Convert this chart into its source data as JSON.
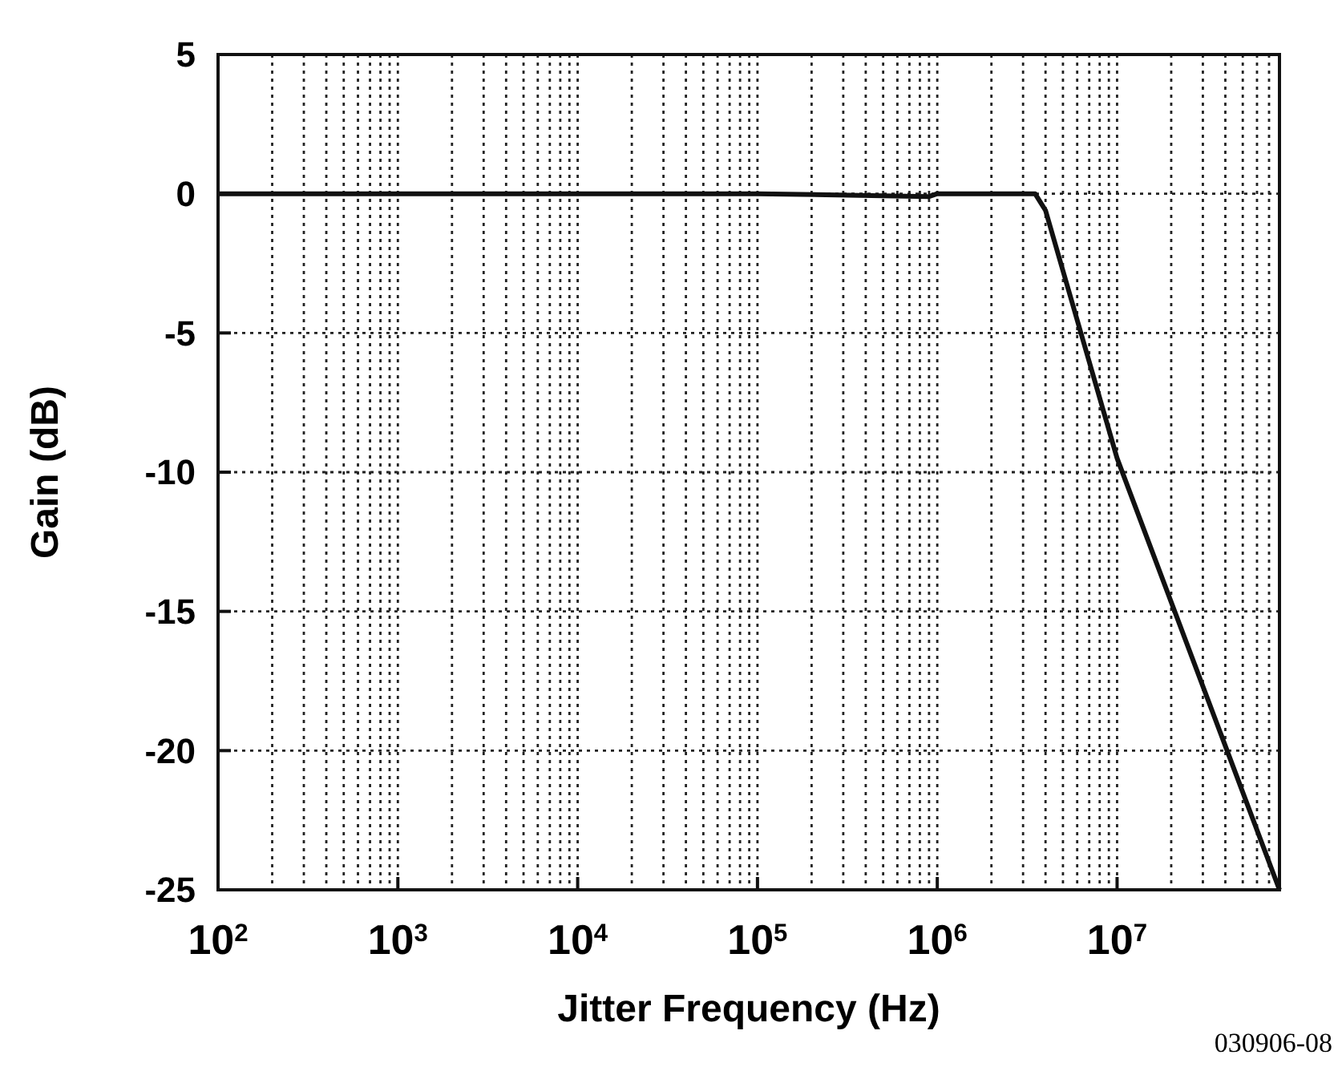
{
  "chart_data": {
    "type": "line",
    "xlabel": "Jitter Frequency (Hz)",
    "ylabel": "Gain (dB)",
    "annotations": [
      "030906-08"
    ],
    "x": [
      100,
      1000,
      10000,
      100000,
      900000,
      1000000,
      2000000,
      3500000,
      4000000,
      10000000,
      80000000
    ],
    "series": [
      {
        "color": "#111111",
        "values": [
          0,
          0,
          0,
          0,
          -0.1,
          0,
          0,
          0,
          -0.6,
          -9.5,
          -25
        ]
      }
    ],
    "xlim": [
      100,
      80000000
    ],
    "ylim": [
      -25,
      5
    ],
    "log": "x",
    "xticks": [
      {
        "value": 100,
        "label": "10$^{2}$"
      },
      {
        "value": 1000,
        "label": "10$^{3}$"
      },
      {
        "value": 10000,
        "label": "10$^{4}$"
      },
      {
        "value": 100000,
        "label": "10$^{5}$"
      },
      {
        "value": 1000000,
        "label": "10$^{6}$"
      },
      {
        "value": 10000000,
        "label": "10$^{7}$"
      }
    ],
    "yticks": [
      5,
      0,
      -5,
      -10,
      -15,
      -20,
      -25
    ],
    "grid": true,
    "line_style": "solid"
  }
}
